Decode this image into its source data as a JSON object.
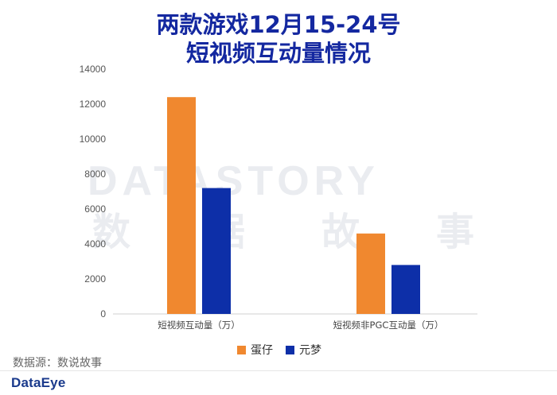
{
  "title": {
    "line1": "两款游戏12月15-24号",
    "line2": "短视频互动量情况"
  },
  "watermark": {
    "logo": "DATASTORY",
    "chinese": [
      "数",
      "据",
      "故",
      "事"
    ]
  },
  "source": "数据源：数说故事",
  "brand": "DataEye",
  "colors": {
    "series1": "#f0882f",
    "series2": "#0d2fa8",
    "title": "#1428a0"
  },
  "chart_data": {
    "type": "bar",
    "title": "两款游戏12月15-24号 短视频互动量情况",
    "categories": [
      "短视频互动量（万）",
      "短视频非PGC互动量（万）"
    ],
    "series": [
      {
        "name": "蛋仔",
        "values": [
          12400,
          4600
        ]
      },
      {
        "name": "元梦",
        "values": [
          7200,
          2800
        ]
      }
    ],
    "ylim": [
      0,
      14000
    ],
    "yticks": [
      0,
      2000,
      4000,
      6000,
      8000,
      10000,
      12000,
      14000
    ],
    "grid": false,
    "legend": "bottom-center"
  }
}
